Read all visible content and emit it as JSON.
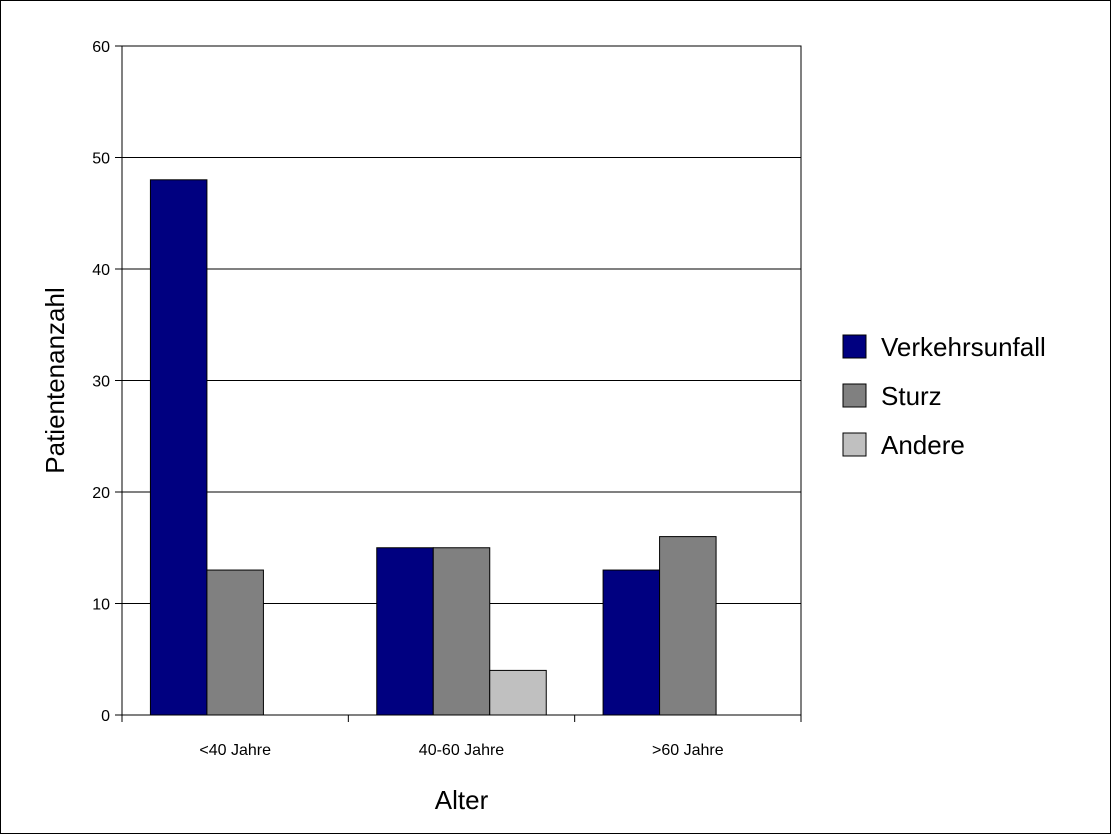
{
  "chart_data": {
    "type": "bar",
    "categories": [
      "<40 Jahre",
      "40-60 Jahre",
      ">60 Jahre"
    ],
    "series": [
      {
        "name": "Verkehrsunfall",
        "color": "#000080",
        "values": [
          48,
          15,
          13
        ]
      },
      {
        "name": "Sturz",
        "color": "#808080",
        "values": [
          13,
          15,
          16
        ]
      },
      {
        "name": "Andere",
        "color": "#c0c0c0",
        "values": [
          0,
          4,
          0
        ]
      }
    ],
    "xlabel": "Alter",
    "ylabel": "Patientenanzahl",
    "ylim": [
      0,
      60
    ],
    "yticks": [
      0,
      10,
      20,
      30,
      40,
      50,
      60
    ],
    "grid": true,
    "legend_position": "right"
  }
}
